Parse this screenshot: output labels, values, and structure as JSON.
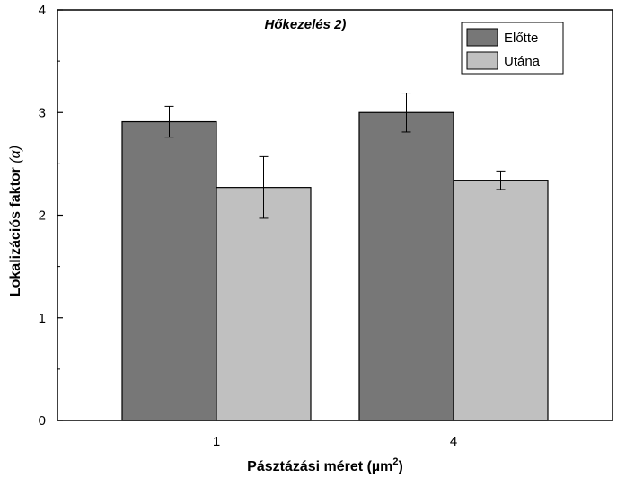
{
  "chart_data": {
    "type": "bar",
    "title": "Hőkezelés 2)",
    "xlabel": "Pásztázási méret (µm",
    "xlabel_sup": "2",
    "xlabel_suffix": ")",
    "ylabel": "Lokalizációs faktor",
    "ylabel_symbol": "(α)",
    "categories": [
      "1",
      "4"
    ],
    "ylim": [
      0,
      4
    ],
    "yticks": [
      "0",
      "1",
      "2",
      "3",
      "4"
    ],
    "series": [
      {
        "name": "Előtte",
        "color": "#777777",
        "values": [
          2.91,
          3.0
        ],
        "errors": [
          0.15,
          0.19
        ]
      },
      {
        "name": "Utána",
        "color": "#c0c0c0",
        "values": [
          2.27,
          2.34
        ],
        "errors": [
          0.3,
          0.09
        ]
      }
    ],
    "legend_position": "top-right",
    "grid": false
  }
}
